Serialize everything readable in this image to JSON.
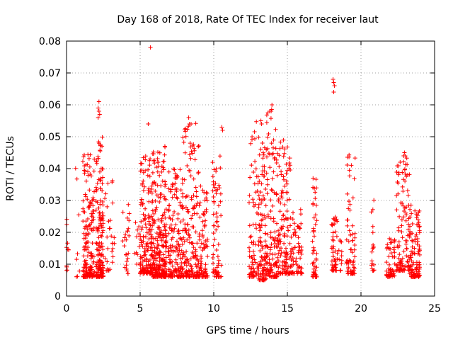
{
  "chart_data": {
    "type": "scatter",
    "title": "Day 168 of 2018, Rate Of TEC Index for receiver laut",
    "xlabel": "GPS time / hours",
    "ylabel": "ROTI / TECUs",
    "xlim": [
      0,
      25
    ],
    "ylim": [
      0,
      0.08
    ],
    "grid": true,
    "grid_style": "dotted",
    "marker": "+",
    "x_ticks": [
      0,
      5,
      10,
      15,
      20,
      25
    ],
    "x_tick_labels": [
      "0",
      "5",
      "10",
      "15",
      "20",
      "25"
    ],
    "y_ticks": [
      0,
      0.01,
      0.02,
      0.03,
      0.04,
      0.05,
      0.06,
      0.07,
      0.08
    ],
    "y_tick_labels": [
      "0",
      "0.01",
      "0.02",
      "0.03",
      "0.04",
      "0.05",
      "0.06",
      "0.07",
      "0.08"
    ],
    "series": [
      {
        "name": "laut",
        "color": "#ff0000",
        "clusters": [
          {
            "x": [
              0.0,
              0.15
            ],
            "y": [
              0.008,
              0.03
            ],
            "n": 10
          },
          {
            "x": [
              0.6,
              0.9
            ],
            "y": [
              0.006,
              0.044
            ],
            "n": 8
          },
          {
            "x": [
              1.1,
              1.9
            ],
            "y": [
              0.006,
              0.045
            ],
            "n": 160
          },
          {
            "x": [
              2.0,
              2.5
            ],
            "y": [
              0.006,
              0.05
            ],
            "n": 160
          },
          {
            "x": [
              2.6,
              3.3
            ],
            "y": [
              0.008,
              0.039
            ],
            "n": 30
          },
          {
            "x": [
              3.8,
              4.3
            ],
            "y": [
              0.007,
              0.032
            ],
            "n": 25
          },
          {
            "x": [
              4.6,
              5.0
            ],
            "y": [
              0.01,
              0.024
            ],
            "n": 10
          },
          {
            "x": [
              5.0,
              5.8
            ],
            "y": [
              0.007,
              0.045
            ],
            "n": 160
          },
          {
            "x": [
              5.8,
              6.8
            ],
            "y": [
              0.006,
              0.047
            ],
            "n": 260
          },
          {
            "x": [
              6.9,
              7.9
            ],
            "y": [
              0.006,
              0.04
            ],
            "n": 160
          },
          {
            "x": [
              7.9,
              9.0
            ],
            "y": [
              0.006,
              0.055
            ],
            "n": 170
          },
          {
            "x": [
              9.0,
              9.6
            ],
            "y": [
              0.006,
              0.035
            ],
            "n": 80
          },
          {
            "x": [
              9.9,
              10.5
            ],
            "y": [
              0.006,
              0.044
            ],
            "n": 70
          },
          {
            "x": [
              12.4,
              13.0
            ],
            "y": [
              0.006,
              0.055
            ],
            "n": 70
          },
          {
            "x": [
              13.0,
              13.6
            ],
            "y": [
              0.005,
              0.05
            ],
            "n": 120
          },
          {
            "x": [
              13.6,
              14.3
            ],
            "y": [
              0.006,
              0.06
            ],
            "n": 110
          },
          {
            "x": [
              14.3,
              15.2
            ],
            "y": [
              0.007,
              0.05
            ],
            "n": 140
          },
          {
            "x": [
              15.2,
              16.0
            ],
            "y": [
              0.007,
              0.029
            ],
            "n": 70
          },
          {
            "x": [
              16.7,
              17.0
            ],
            "y": [
              0.006,
              0.038
            ],
            "n": 50
          },
          {
            "x": [
              18.0,
              18.4
            ],
            "y": [
              0.008,
              0.025
            ],
            "n": 50
          },
          {
            "x": [
              18.5,
              18.7
            ],
            "y": [
              0.008,
              0.044
            ],
            "n": 12
          },
          {
            "x": [
              19.0,
              19.6
            ],
            "y": [
              0.007,
              0.045
            ],
            "n": 70
          },
          {
            "x": [
              20.7,
              20.9
            ],
            "y": [
              0.008,
              0.033
            ],
            "n": 18
          },
          {
            "x": [
              21.7,
              22.3
            ],
            "y": [
              0.006,
              0.02
            ],
            "n": 55
          },
          {
            "x": [
              22.4,
              23.3
            ],
            "y": [
              0.008,
              0.044
            ],
            "n": 110
          },
          {
            "x": [
              23.3,
              24.0
            ],
            "y": [
              0.006,
              0.029
            ],
            "n": 110
          }
        ],
        "outliers": [
          {
            "x": 5.7,
            "y": 0.078
          },
          {
            "x": 18.1,
            "y": 0.068
          },
          {
            "x": 18.15,
            "y": 0.067
          },
          {
            "x": 18.2,
            "y": 0.066
          },
          {
            "x": 18.15,
            "y": 0.064
          },
          {
            "x": 10.55,
            "y": 0.053
          },
          {
            "x": 10.6,
            "y": 0.052
          },
          {
            "x": 2.2,
            "y": 0.061
          },
          {
            "x": 2.15,
            "y": 0.059
          },
          {
            "x": 2.2,
            "y": 0.058
          },
          {
            "x": 2.25,
            "y": 0.057
          },
          {
            "x": 2.15,
            "y": 0.056
          },
          {
            "x": 13.8,
            "y": 0.058
          },
          {
            "x": 13.9,
            "y": 0.058
          },
          {
            "x": 13.95,
            "y": 0.06
          },
          {
            "x": 5.55,
            "y": 0.054
          },
          {
            "x": 8.3,
            "y": 0.056
          },
          {
            "x": 8.35,
            "y": 0.054
          },
          {
            "x": 13.2,
            "y": 0.055
          },
          {
            "x": 13.25,
            "y": 0.054
          },
          {
            "x": 22.9,
            "y": 0.044
          },
          {
            "x": 22.95,
            "y": 0.045
          },
          {
            "x": 23.0,
            "y": 0.044
          }
        ]
      }
    ]
  }
}
